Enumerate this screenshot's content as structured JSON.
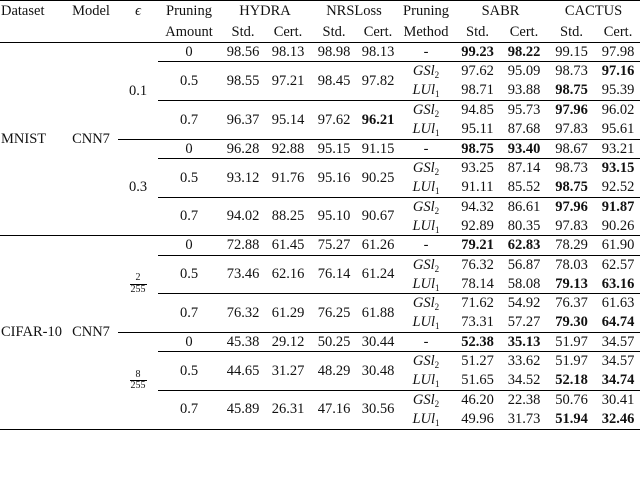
{
  "header": {
    "dataset": "Dataset",
    "model": "Model",
    "eps": "ϵ",
    "pruning": "Pruning",
    "amount": "Amount",
    "hydra": "HYDRA",
    "nrsloss": "NRSLoss",
    "pruning_method_top": "Pruning",
    "method": "Method",
    "sabr": "SABR",
    "cactus": "CACTUS",
    "std": "Std.",
    "cert": "Cert."
  },
  "groups": [
    {
      "dataset": "MNIST",
      "model": "CNN7",
      "eps_blocks": [
        {
          "eps": {
            "type": "text",
            "value": "0.1"
          },
          "base": {
            "amount": "0",
            "hydra_std": "98.56",
            "hydra_cert": "98.13",
            "nrs_std": "98.98",
            "nrs_cert": "98.13",
            "method": "-",
            "sabr_std": "99.23",
            "sabr_cert": "98.22",
            "cactus_std": "99.15",
            "cactus_cert": "97.98",
            "bold": [
              "sabr_std",
              "sabr_cert"
            ]
          },
          "amounts": [
            {
              "amount": "0.5",
              "hydra_std": "98.55",
              "hydra_cert": "97.21",
              "nrs_std": "98.45",
              "nrs_cert": "97.82",
              "bold_shared": [],
              "methods": [
                {
                  "base": "GSl",
                  "sub": "2",
                  "sabr_std": "97.62",
                  "sabr_cert": "95.09",
                  "cactus_std": "98.73",
                  "cactus_cert": "97.16",
                  "bold": [
                    "cactus_cert"
                  ]
                },
                {
                  "base": "LUl",
                  "sub": "1",
                  "sabr_std": "98.71",
                  "sabr_cert": "93.88",
                  "cactus_std": "98.75",
                  "cactus_cert": "95.39",
                  "bold": [
                    "cactus_std"
                  ]
                }
              ]
            },
            {
              "amount": "0.7",
              "hydra_std": "96.37",
              "hydra_cert": "95.14",
              "nrs_std": "97.62",
              "nrs_cert": "96.21",
              "bold_shared": [
                "nrs_cert"
              ],
              "methods": [
                {
                  "base": "GSl",
                  "sub": "2",
                  "sabr_std": "94.85",
                  "sabr_cert": "95.73",
                  "cactus_std": "97.96",
                  "cactus_cert": "96.02",
                  "bold": [
                    "cactus_std"
                  ]
                },
                {
                  "base": "LUl",
                  "sub": "1",
                  "sabr_std": "95.11",
                  "sabr_cert": "87.68",
                  "cactus_std": "97.83",
                  "cactus_cert": "95.61",
                  "bold": []
                }
              ]
            }
          ]
        },
        {
          "eps": {
            "type": "text",
            "value": "0.3"
          },
          "base": {
            "amount": "0",
            "hydra_std": "96.28",
            "hydra_cert": "92.88",
            "nrs_std": "95.15",
            "nrs_cert": "91.15",
            "method": "-",
            "sabr_std": "98.75",
            "sabr_cert": "93.40",
            "cactus_std": "98.67",
            "cactus_cert": "93.21",
            "bold": [
              "sabr_std",
              "sabr_cert"
            ]
          },
          "amounts": [
            {
              "amount": "0.5",
              "hydra_std": "93.12",
              "hydra_cert": "91.76",
              "nrs_std": "95.16",
              "nrs_cert": "90.25",
              "bold_shared": [],
              "methods": [
                {
                  "base": "GSl",
                  "sub": "2",
                  "sabr_std": "93.25",
                  "sabr_cert": "87.14",
                  "cactus_std": "98.73",
                  "cactus_cert": "93.15",
                  "bold": [
                    "cactus_cert"
                  ]
                },
                {
                  "base": "LUl",
                  "sub": "1",
                  "sabr_std": "91.11",
                  "sabr_cert": "85.52",
                  "cactus_std": "98.75",
                  "cactus_cert": "92.52",
                  "bold": [
                    "cactus_std"
                  ]
                }
              ]
            },
            {
              "amount": "0.7",
              "hydra_std": "94.02",
              "hydra_cert": "88.25",
              "nrs_std": "95.10",
              "nrs_cert": "90.67",
              "bold_shared": [],
              "methods": [
                {
                  "base": "GSl",
                  "sub": "2",
                  "sabr_std": "94.32",
                  "sabr_cert": "86.61",
                  "cactus_std": "97.96",
                  "cactus_cert": "91.87",
                  "bold": [
                    "cactus_std",
                    "cactus_cert"
                  ]
                },
                {
                  "base": "LUl",
                  "sub": "1",
                  "sabr_std": "92.89",
                  "sabr_cert": "80.35",
                  "cactus_std": "97.83",
                  "cactus_cert": "90.26",
                  "bold": []
                }
              ]
            }
          ]
        }
      ]
    },
    {
      "dataset": "CIFAR-10",
      "model": "CNN7",
      "eps_blocks": [
        {
          "eps": {
            "type": "frac",
            "num": "2",
            "den": "255"
          },
          "base": {
            "amount": "0",
            "hydra_std": "72.88",
            "hydra_cert": "61.45",
            "nrs_std": "75.27",
            "nrs_cert": "61.26",
            "method": "-",
            "sabr_std": "79.21",
            "sabr_cert": "62.83",
            "cactus_std": "78.29",
            "cactus_cert": "61.90",
            "bold": [
              "sabr_std",
              "sabr_cert"
            ]
          },
          "amounts": [
            {
              "amount": "0.5",
              "hydra_std": "73.46",
              "hydra_cert": "62.16",
              "nrs_std": "76.14",
              "nrs_cert": "61.24",
              "bold_shared": [],
              "methods": [
                {
                  "base": "GSl",
                  "sub": "2",
                  "sabr_std": "76.32",
                  "sabr_cert": "56.87",
                  "cactus_std": "78.03",
                  "cactus_cert": "62.57",
                  "bold": []
                },
                {
                  "base": "LUl",
                  "sub": "1",
                  "sabr_std": "78.14",
                  "sabr_cert": "58.08",
                  "cactus_std": "79.13",
                  "cactus_cert": "63.16",
                  "bold": [
                    "cactus_std",
                    "cactus_cert"
                  ]
                }
              ]
            },
            {
              "amount": "0.7",
              "hydra_std": "76.32",
              "hydra_cert": "61.29",
              "nrs_std": "76.25",
              "nrs_cert": "61.88",
              "bold_shared": [],
              "methods": [
                {
                  "base": "GSl",
                  "sub": "2",
                  "sabr_std": "71.62",
                  "sabr_cert": "54.92",
                  "cactus_std": "76.37",
                  "cactus_cert": "61.63",
                  "bold": []
                },
                {
                  "base": "LUl",
                  "sub": "1",
                  "sabr_std": "73.31",
                  "sabr_cert": "57.27",
                  "cactus_std": "79.30",
                  "cactus_cert": "64.74",
                  "bold": [
                    "cactus_std",
                    "cactus_cert"
                  ]
                }
              ]
            }
          ]
        },
        {
          "eps": {
            "type": "frac",
            "num": "8",
            "den": "255"
          },
          "base": {
            "amount": "0",
            "hydra_std": "45.38",
            "hydra_cert": "29.12",
            "nrs_std": "50.25",
            "nrs_cert": "30.44",
            "method": "-",
            "sabr_std": "52.38",
            "sabr_cert": "35.13",
            "cactus_std": "51.97",
            "cactus_cert": "34.57",
            "bold": [
              "sabr_std",
              "sabr_cert"
            ]
          },
          "amounts": [
            {
              "amount": "0.5",
              "hydra_std": "44.65",
              "hydra_cert": "31.27",
              "nrs_std": "48.29",
              "nrs_cert": "30.48",
              "bold_shared": [],
              "methods": [
                {
                  "base": "GSl",
                  "sub": "2",
                  "sabr_std": "51.27",
                  "sabr_cert": "33.62",
                  "cactus_std": "51.97",
                  "cactus_cert": "34.57",
                  "bold": []
                },
                {
                  "base": "LUl",
                  "sub": "1",
                  "sabr_std": "51.65",
                  "sabr_cert": "34.52",
                  "cactus_std": "52.18",
                  "cactus_cert": "34.74",
                  "bold": [
                    "cactus_std",
                    "cactus_cert"
                  ]
                }
              ]
            },
            {
              "amount": "0.7",
              "hydra_std": "45.89",
              "hydra_cert": "26.31",
              "nrs_std": "47.16",
              "nrs_cert": "30.56",
              "bold_shared": [],
              "methods": [
                {
                  "base": "GSl",
                  "sub": "2",
                  "sabr_std": "46.20",
                  "sabr_cert": "22.38",
                  "cactus_std": "50.76",
                  "cactus_cert": "30.41",
                  "bold": []
                },
                {
                  "base": "LUl",
                  "sub": "1",
                  "sabr_std": "49.96",
                  "sabr_cert": "31.73",
                  "cactus_std": "51.94",
                  "cactus_cert": "32.46",
                  "bold": [
                    "cactus_std",
                    "cactus_cert"
                  ]
                }
              ]
            }
          ]
        }
      ]
    }
  ]
}
